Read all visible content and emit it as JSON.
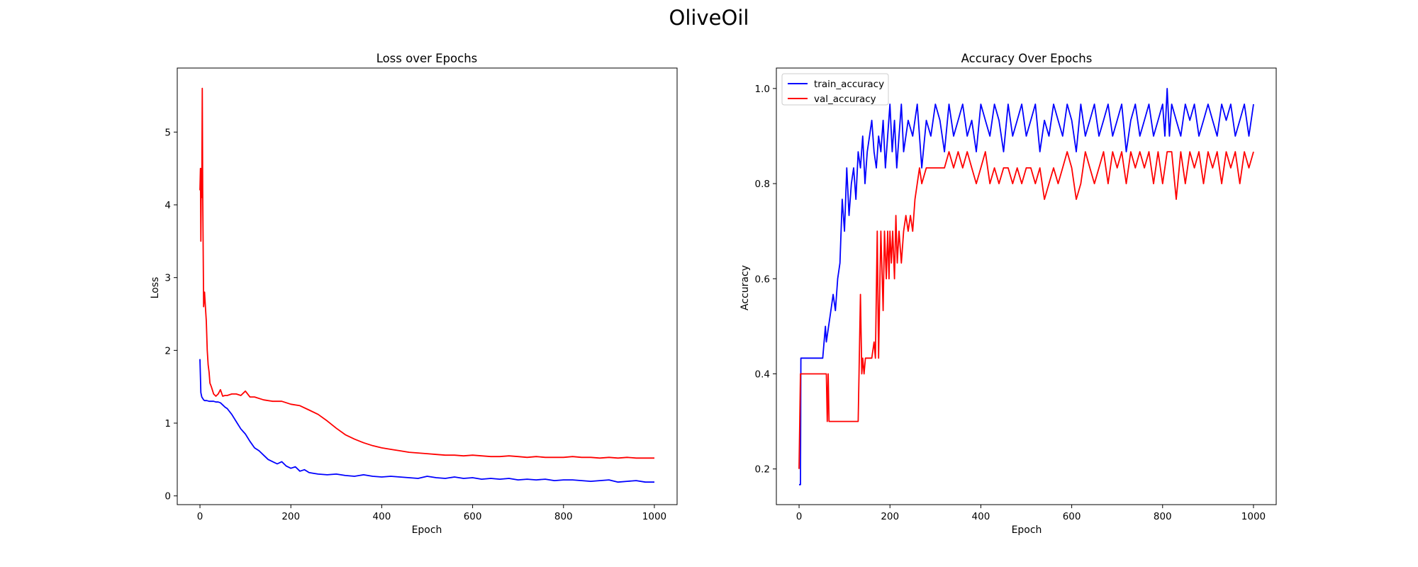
{
  "figure": {
    "suptitle": "OliveOil"
  },
  "colors": {
    "train": "#0000ff",
    "val": "#ff0000",
    "axes": "#000000",
    "background": "#ffffff"
  },
  "chart_data": [
    {
      "type": "line",
      "title": "Loss over Epochs",
      "xlabel": "Epoch",
      "ylabel": "Loss",
      "xlim": [
        -50,
        1050
      ],
      "ylim": [
        -0.12,
        5.88
      ],
      "xticks": [
        0,
        200,
        400,
        600,
        800,
        1000
      ],
      "yticks": [
        0,
        1,
        2,
        3,
        4,
        5
      ],
      "grid": false,
      "legend": null,
      "series": [
        {
          "color": "#0000ff",
          "x": [
            0,
            2,
            4,
            6,
            8,
            10,
            15,
            20,
            25,
            30,
            35,
            40,
            45,
            50,
            55,
            60,
            70,
            80,
            90,
            100,
            110,
            120,
            130,
            140,
            150,
            160,
            170,
            180,
            190,
            200,
            210,
            220,
            230,
            240,
            250,
            260,
            280,
            300,
            320,
            340,
            360,
            380,
            400,
            420,
            440,
            460,
            480,
            500,
            520,
            540,
            560,
            580,
            600,
            620,
            640,
            660,
            680,
            700,
            720,
            740,
            760,
            780,
            800,
            820,
            840,
            860,
            880,
            900,
            920,
            940,
            960,
            980,
            1000
          ],
          "values": [
            1.88,
            1.42,
            1.36,
            1.34,
            1.32,
            1.31,
            1.31,
            1.3,
            1.3,
            1.3,
            1.29,
            1.29,
            1.28,
            1.25,
            1.22,
            1.2,
            1.12,
            1.02,
            0.92,
            0.85,
            0.75,
            0.66,
            0.62,
            0.56,
            0.5,
            0.47,
            0.44,
            0.47,
            0.41,
            0.38,
            0.4,
            0.34,
            0.36,
            0.32,
            0.31,
            0.3,
            0.29,
            0.3,
            0.28,
            0.27,
            0.29,
            0.27,
            0.26,
            0.27,
            0.26,
            0.25,
            0.24,
            0.27,
            0.25,
            0.24,
            0.26,
            0.24,
            0.25,
            0.23,
            0.24,
            0.23,
            0.24,
            0.22,
            0.23,
            0.22,
            0.23,
            0.21,
            0.22,
            0.22,
            0.21,
            0.2,
            0.21,
            0.22,
            0.19,
            0.2,
            0.21,
            0.19,
            0.19
          ]
        },
        {
          "color": "#ff0000",
          "x": [
            0,
            1,
            2,
            3,
            4,
            5,
            6,
            8,
            10,
            12,
            14,
            16,
            18,
            20,
            22,
            25,
            30,
            35,
            40,
            45,
            50,
            55,
            60,
            70,
            80,
            90,
            100,
            110,
            120,
            140,
            160,
            180,
            200,
            220,
            240,
            260,
            280,
            300,
            320,
            340,
            360,
            380,
            400,
            420,
            440,
            460,
            480,
            500,
            520,
            540,
            560,
            580,
            600,
            620,
            640,
            660,
            680,
            700,
            720,
            740,
            760,
            780,
            800,
            820,
            840,
            860,
            880,
            900,
            920,
            940,
            960,
            980,
            1000
          ],
          "values": [
            4.2,
            4.5,
            3.5,
            4.5,
            4.1,
            5.6,
            4.2,
            2.6,
            2.8,
            2.6,
            2.4,
            2.0,
            1.8,
            1.7,
            1.55,
            1.5,
            1.4,
            1.37,
            1.4,
            1.46,
            1.37,
            1.38,
            1.38,
            1.4,
            1.4,
            1.38,
            1.44,
            1.36,
            1.36,
            1.32,
            1.3,
            1.3,
            1.26,
            1.24,
            1.18,
            1.12,
            1.03,
            0.93,
            0.84,
            0.78,
            0.73,
            0.69,
            0.66,
            0.64,
            0.62,
            0.6,
            0.59,
            0.58,
            0.57,
            0.56,
            0.56,
            0.55,
            0.56,
            0.55,
            0.54,
            0.54,
            0.55,
            0.54,
            0.53,
            0.54,
            0.53,
            0.53,
            0.53,
            0.54,
            0.53,
            0.53,
            0.52,
            0.53,
            0.52,
            0.53,
            0.52,
            0.52,
            0.52
          ]
        }
      ]
    },
    {
      "type": "line",
      "title": "Accuracy Over Epochs",
      "xlabel": "Epoch",
      "ylabel": "Accuracy",
      "xlim": [
        -50,
        1050
      ],
      "ylim": [
        0.125,
        1.043
      ],
      "xticks": [
        0,
        200,
        400,
        600,
        800,
        1000
      ],
      "yticks": [
        0.2,
        0.4,
        0.6,
        0.8,
        1.0
      ],
      "grid": false,
      "legend": "top-left",
      "series": [
        {
          "name": "train_accuracy",
          "color": "#0000ff",
          "x": [
            0,
            3,
            4,
            5,
            6,
            50,
            52,
            55,
            58,
            60,
            65,
            70,
            75,
            80,
            85,
            90,
            95,
            100,
            105,
            110,
            115,
            120,
            125,
            130,
            135,
            140,
            145,
            150,
            155,
            160,
            165,
            170,
            175,
            180,
            185,
            190,
            195,
            200,
            205,
            210,
            215,
            220,
            225,
            230,
            240,
            250,
            260,
            270,
            280,
            290,
            300,
            310,
            320,
            330,
            340,
            350,
            360,
            370,
            380,
            390,
            400,
            410,
            420,
            430,
            440,
            450,
            460,
            470,
            480,
            490,
            500,
            510,
            520,
            530,
            540,
            550,
            560,
            570,
            580,
            590,
            600,
            610,
            620,
            630,
            640,
            650,
            660,
            670,
            680,
            690,
            700,
            710,
            720,
            730,
            740,
            750,
            760,
            770,
            780,
            790,
            800,
            805,
            810,
            815,
            820,
            830,
            840,
            850,
            860,
            870,
            880,
            890,
            900,
            910,
            920,
            930,
            940,
            950,
            960,
            970,
            980,
            990,
            1000
          ],
          "values": [
            0.167,
            0.167,
            0.433,
            0.433,
            0.433,
            0.433,
            0.433,
            0.467,
            0.5,
            0.467,
            0.5,
            0.533,
            0.567,
            0.533,
            0.6,
            0.633,
            0.767,
            0.7,
            0.833,
            0.733,
            0.8,
            0.833,
            0.767,
            0.867,
            0.833,
            0.9,
            0.8,
            0.867,
            0.9,
            0.933,
            0.867,
            0.833,
            0.9,
            0.867,
            0.933,
            0.833,
            0.9,
            0.967,
            0.867,
            0.933,
            0.833,
            0.9,
            0.967,
            0.867,
            0.933,
            0.9,
            0.967,
            0.833,
            0.933,
            0.9,
            0.967,
            0.933,
            0.867,
            0.967,
            0.9,
            0.933,
            0.967,
            0.9,
            0.933,
            0.867,
            0.967,
            0.933,
            0.9,
            0.967,
            0.933,
            0.867,
            0.967,
            0.9,
            0.933,
            0.967,
            0.9,
            0.933,
            0.967,
            0.867,
            0.933,
            0.9,
            0.967,
            0.933,
            0.9,
            0.967,
            0.933,
            0.867,
            0.967,
            0.9,
            0.933,
            0.967,
            0.9,
            0.933,
            0.967,
            0.9,
            0.933,
            0.967,
            0.867,
            0.933,
            0.967,
            0.9,
            0.933,
            0.967,
            0.9,
            0.933,
            0.967,
            0.9,
            1.0,
            0.9,
            0.967,
            0.933,
            0.9,
            0.967,
            0.933,
            0.967,
            0.9,
            0.933,
            0.967,
            0.933,
            0.9,
            0.967,
            0.933,
            0.967,
            0.9,
            0.933,
            0.967,
            0.9,
            0.967
          ]
        },
        {
          "name": "val_accuracy",
          "color": "#ff0000",
          "x": [
            0,
            3,
            60,
            62,
            64,
            66,
            68,
            130,
            135,
            138,
            140,
            143,
            146,
            150,
            155,
            160,
            165,
            168,
            172,
            175,
            178,
            180,
            185,
            188,
            192,
            195,
            198,
            200,
            203,
            206,
            210,
            213,
            216,
            220,
            225,
            230,
            235,
            240,
            245,
            250,
            255,
            260,
            265,
            270,
            280,
            290,
            300,
            310,
            320,
            330,
            340,
            350,
            360,
            370,
            380,
            390,
            400,
            410,
            420,
            430,
            440,
            450,
            460,
            470,
            480,
            490,
            500,
            510,
            520,
            530,
            540,
            550,
            560,
            570,
            580,
            590,
            600,
            610,
            620,
            630,
            640,
            650,
            660,
            670,
            680,
            690,
            700,
            710,
            720,
            730,
            740,
            750,
            760,
            770,
            780,
            790,
            800,
            810,
            820,
            830,
            840,
            850,
            860,
            870,
            880,
            890,
            900,
            910,
            920,
            930,
            940,
            950,
            960,
            970,
            980,
            990,
            1000
          ],
          "values": [
            0.2,
            0.4,
            0.4,
            0.3,
            0.4,
            0.3,
            0.3,
            0.3,
            0.567,
            0.4,
            0.433,
            0.4,
            0.433,
            0.433,
            0.433,
            0.433,
            0.467,
            0.433,
            0.7,
            0.433,
            0.6,
            0.7,
            0.533,
            0.7,
            0.6,
            0.7,
            0.6,
            0.7,
            0.633,
            0.7,
            0.6,
            0.733,
            0.633,
            0.7,
            0.633,
            0.7,
            0.733,
            0.7,
            0.733,
            0.7,
            0.767,
            0.8,
            0.833,
            0.8,
            0.833,
            0.833,
            0.833,
            0.833,
            0.833,
            0.867,
            0.833,
            0.867,
            0.833,
            0.867,
            0.833,
            0.8,
            0.833,
            0.867,
            0.8,
            0.833,
            0.8,
            0.833,
            0.833,
            0.8,
            0.833,
            0.8,
            0.833,
            0.833,
            0.8,
            0.833,
            0.767,
            0.8,
            0.833,
            0.8,
            0.833,
            0.867,
            0.833,
            0.767,
            0.8,
            0.867,
            0.833,
            0.8,
            0.833,
            0.867,
            0.8,
            0.867,
            0.833,
            0.867,
            0.8,
            0.867,
            0.833,
            0.867,
            0.833,
            0.867,
            0.8,
            0.867,
            0.8,
            0.867,
            0.867,
            0.767,
            0.867,
            0.8,
            0.867,
            0.833,
            0.867,
            0.8,
            0.867,
            0.833,
            0.867,
            0.8,
            0.867,
            0.833,
            0.867,
            0.8,
            0.867,
            0.833,
            0.867
          ]
        }
      ]
    }
  ]
}
